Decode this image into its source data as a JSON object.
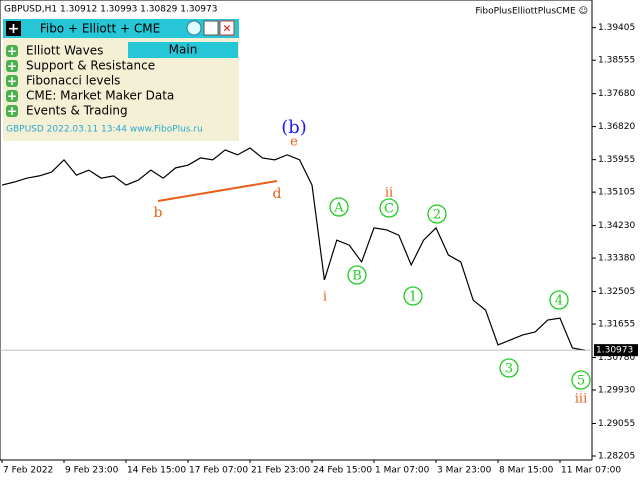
{
  "header": {
    "symbol_info": "GBPUSD,H1  1.30912 1.30993 1.30829 1.30973",
    "indicator": "FiboPlusElliottPlusCME ☺"
  },
  "panel": {
    "title": "Fibo + Elliott + CME",
    "button": "Main",
    "items": [
      "Elliott Waves",
      "Support & Resistance",
      "Fibonacci levels",
      "CME: Market Maker Data",
      "Events & Trading"
    ],
    "footer": "GBPUSD   2022.03.11 13:44   www.FiboPlus.ru"
  },
  "chart_data": {
    "type": "line",
    "categories": [
      "7 Feb 2022",
      null,
      null,
      null,
      null,
      "9 Feb 23:00",
      null,
      null,
      null,
      null,
      "14 Feb 15:00",
      null,
      null,
      null,
      null,
      "17 Feb 07:00",
      null,
      null,
      null,
      null,
      "21 Feb 23:00",
      null,
      null,
      null,
      null,
      "24 Feb 15:00",
      null,
      null,
      null,
      null,
      "1 Mar 07:00",
      null,
      null,
      null,
      null,
      "3 Mar 23:00",
      null,
      null,
      null,
      null,
      "8 Mar 15:00",
      null,
      null,
      null,
      null,
      "11 Mar 07:00",
      null,
      null
    ],
    "series": [
      {
        "color": "#000000",
        "values": [
          1.3529,
          1.3537,
          1.3547,
          1.3553,
          1.3563,
          1.3595,
          1.3555,
          1.3568,
          1.3547,
          1.3553,
          1.3529,
          1.3542,
          1.3568,
          1.3547,
          1.3574,
          1.3581,
          1.36,
          1.3595,
          1.3621,
          1.3608,
          1.3626,
          1.36,
          1.3595,
          1.3608,
          1.3595,
          1.3529,
          1.3281,
          1.3385,
          1.3372,
          1.3328,
          1.3417,
          1.3412,
          1.3398,
          1.332,
          1.3385,
          1.3417,
          1.3346,
          1.3328,
          1.3228,
          1.3202,
          1.3111,
          1.3124,
          1.3137,
          1.3145,
          1.3176,
          1.3181,
          1.3103,
          1.3097
        ]
      }
    ],
    "last_price": 1.30973,
    "ylim": [
      1.281,
      1.4013
    ],
    "yticks": [
      1.39405,
      1.38555,
      {
        "value": 1.3768,
        "label": "1.37680"
      },
      {
        "value": 1.3682,
        "label": "1.36820"
      },
      1.35955,
      1.35105,
      {
        "value": 1.3423,
        "label": "1.34230"
      },
      {
        "value": 1.3338,
        "label": "1.33380"
      },
      1.32505,
      1.31655,
      {
        "value": 1.3078,
        "label": "1.30780"
      },
      {
        "value": 1.2993,
        "label": "1.29930"
      },
      1.29055,
      1.28205
    ],
    "annotations": [
      {
        "text": "(b)",
        "color": "#1a1aff"
      },
      {
        "text": "e",
        "color": "#e8601a"
      },
      {
        "text": "b",
        "color": "#e8601a"
      },
      {
        "text": "d",
        "color": "#e8601a"
      },
      {
        "text": "i",
        "color": "#e8601a"
      },
      {
        "text": "ii",
        "color": "#e8601a"
      },
      {
        "text": "iii",
        "color": "#e8601a"
      },
      {
        "text": "A",
        "color": "#22cc22"
      },
      {
        "text": "B",
        "color": "#22cc22"
      },
      {
        "text": "C",
        "color": "#22cc22"
      },
      {
        "text": "1",
        "color": "#22cc22"
      },
      {
        "text": "2",
        "color": "#22cc22"
      },
      {
        "text": "3",
        "color": "#22cc22"
      },
      {
        "text": "4",
        "color": "#22cc22"
      },
      {
        "text": "5",
        "color": "#22cc22"
      }
    ]
  }
}
